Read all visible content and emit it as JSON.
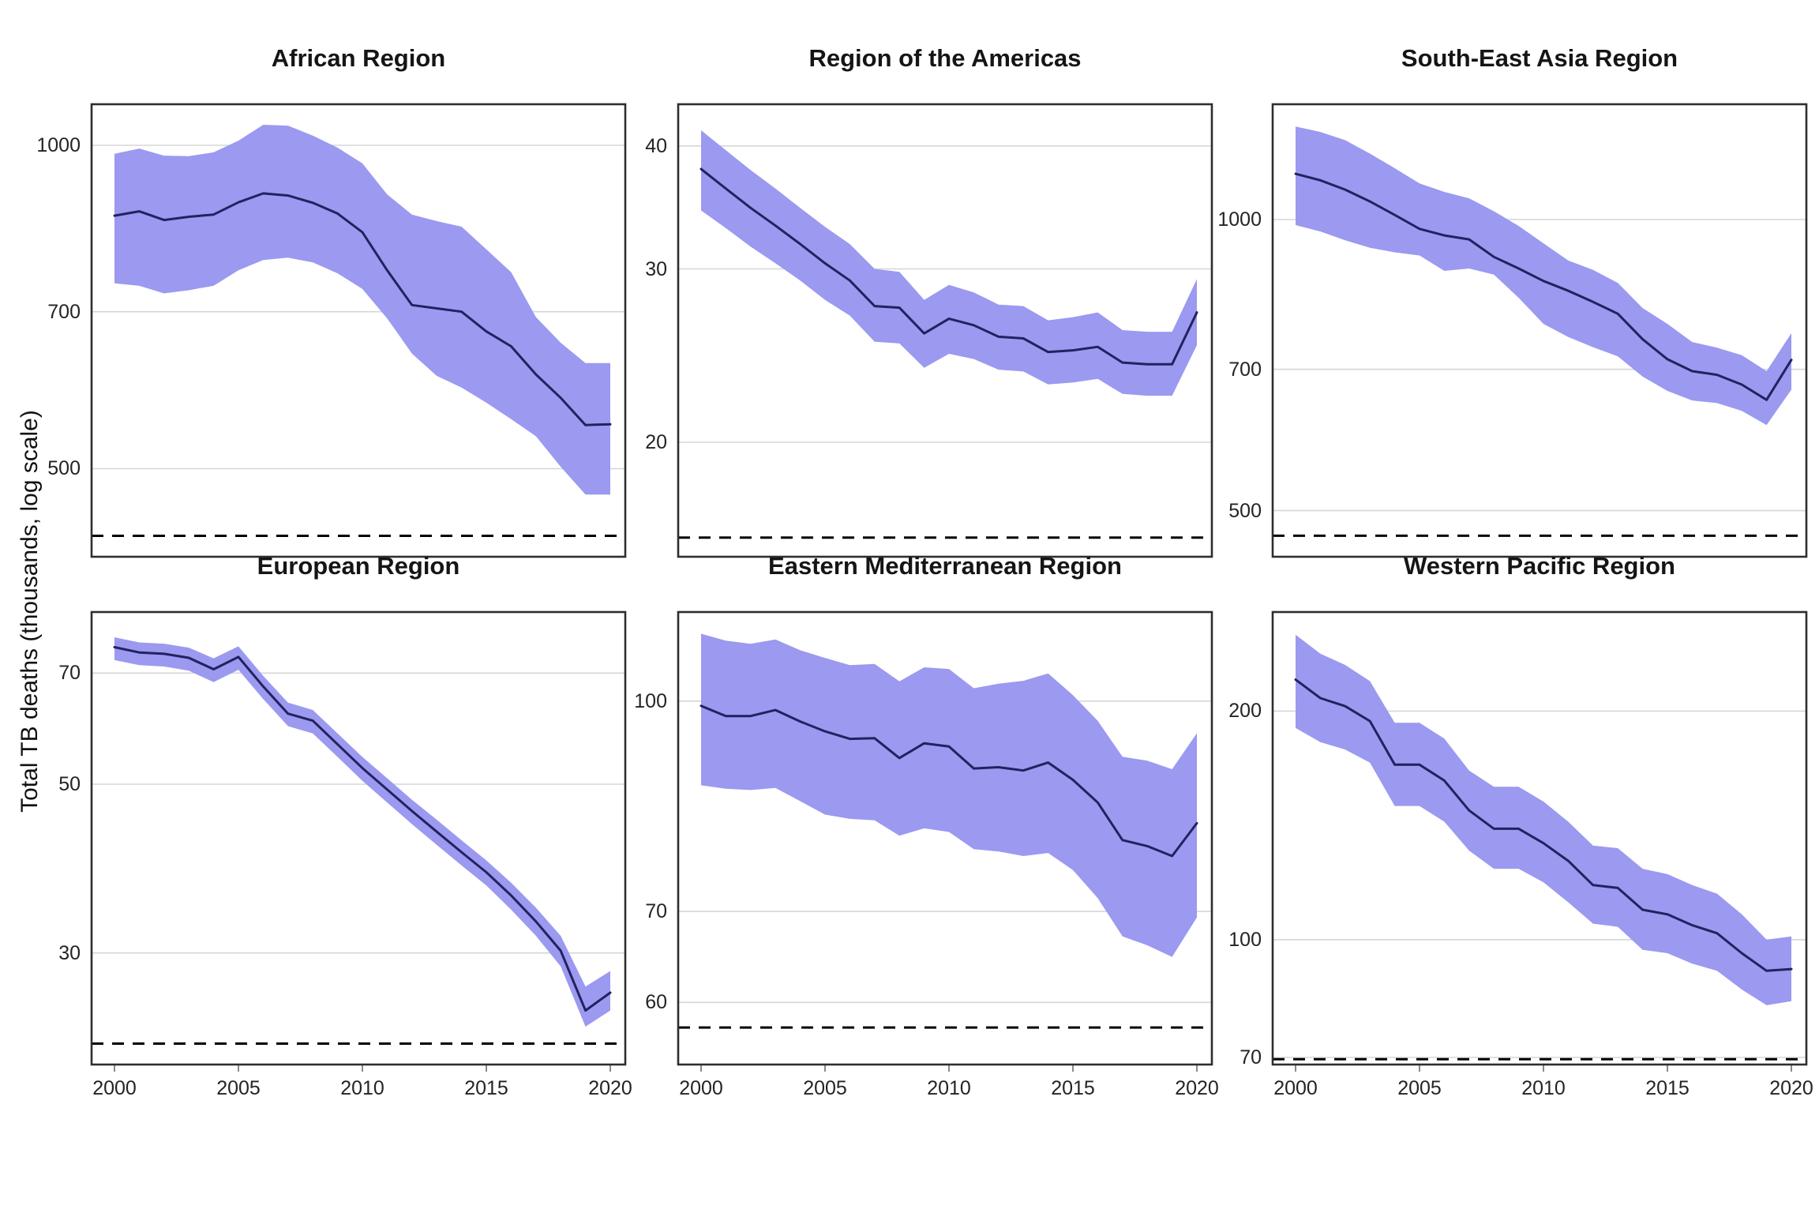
{
  "figure": {
    "ylabel": "Total TB deaths (thousands, log scale)"
  },
  "chart_data": {
    "type": "line",
    "title": "",
    "description": "Faceted ribbon line charts (2 rows x 3 columns), one per WHO region, log-scale y axis, with uncertainty band, mean line and dashed horizontal target line",
    "ylabel": "Total TB deaths (thousands, log scale)",
    "log_scale": true,
    "legend": "none",
    "grid": "horizontal gridlines only",
    "colors": {
      "ribbon": "#9b99f0",
      "line": "#23215f",
      "gridline": "#d6d6d6",
      "border": "#2e2e2e",
      "dashed": "#000000",
      "tick": "#8a8a8a"
    },
    "x": [
      2000,
      2001,
      2002,
      2003,
      2004,
      2005,
      2006,
      2007,
      2008,
      2009,
      2010,
      2011,
      2012,
      2013,
      2014,
      2015,
      2016,
      2017,
      2018,
      2019,
      2020
    ],
    "x_ticks": [
      {
        "label": "2000",
        "value": 2000
      },
      {
        "label": "2005",
        "value": 2005
      },
      {
        "label": "2010",
        "value": 2010
      },
      {
        "label": "2015",
        "value": 2015
      },
      {
        "label": "2020",
        "value": 2020
      }
    ],
    "facets": [
      {
        "title": "African Region",
        "ymax": 1092,
        "ymin": 414,
        "yticks": [
          {
            "label": "1000",
            "value": 1000
          },
          {
            "label": "700",
            "value": 700
          },
          {
            "label": "500",
            "value": 500
          }
        ],
        "dashed_line": 433,
        "mean": [
          860,
          868,
          852,
          858,
          862,
          885,
          902,
          898,
          884,
          864,
          830,
          765,
          710,
          705,
          700,
          671,
          650,
          612,
          582,
          549,
          550
        ],
        "hi": [
          982,
          993,
          978,
          977,
          985,
          1010,
          1045,
          1043,
          1021,
          995,
          962,
          900,
          862,
          850,
          840,
          800,
          762,
          692,
          655,
          627,
          627
        ],
        "lo": [
          744,
          740,
          728,
          733,
          740,
          765,
          782,
          786,
          778,
          760,
          735,
          690,
          640,
          610,
          595,
          576,
          556,
          536,
          502,
          473,
          473
        ]
      },
      {
        "title": "Region of the Americas",
        "ymax": 44.1,
        "ymin": 15.3,
        "yticks": [
          {
            "label": "40",
            "value": 40
          },
          {
            "label": "30",
            "value": 30
          },
          {
            "label": "20",
            "value": 20
          }
        ],
        "dashed_line": 16.0,
        "mean": [
          37.9,
          36.2,
          34.6,
          33.2,
          31.8,
          30.4,
          29.2,
          27.5,
          27.4,
          25.8,
          26.7,
          26.3,
          25.6,
          25.5,
          24.7,
          24.8,
          25.0,
          24.1,
          24.0,
          24.0,
          27.1
        ],
        "hi": [
          41.5,
          39.6,
          37.8,
          36.2,
          34.6,
          33.1,
          31.8,
          30.0,
          29.8,
          27.9,
          28.9,
          28.4,
          27.6,
          27.5,
          26.6,
          26.8,
          27.1,
          26.0,
          25.9,
          25.9,
          29.3
        ],
        "lo": [
          34.4,
          33.0,
          31.6,
          30.4,
          29.2,
          27.9,
          26.9,
          25.3,
          25.2,
          23.8,
          24.6,
          24.3,
          23.7,
          23.6,
          22.9,
          23.0,
          23.2,
          22.4,
          22.3,
          22.3,
          25.1
        ]
      },
      {
        "title": "South-East Asia Region",
        "ymax": 1316,
        "ymin": 448,
        "yticks": [
          {
            "label": "1000",
            "value": 1000
          },
          {
            "label": "700",
            "value": 700
          },
          {
            "label": "500",
            "value": 500
          }
        ],
        "dashed_line": 471,
        "mean": [
          1115,
          1098,
          1074,
          1044,
          1011,
          978,
          963,
          954,
          915,
          890,
          864,
          844,
          822,
          799,
          752,
          717,
          697,
          691,
          675,
          651,
          716
        ],
        "hi": [
          1248,
          1232,
          1208,
          1170,
          1130,
          1090,
          1068,
          1052,
          1020,
          985,
          945,
          907,
          887,
          860,
          810,
          780,
          747,
          737,
          724,
          697,
          763
        ],
        "lo": [
          987,
          972,
          952,
          935,
          925,
          918,
          885,
          890,
          877,
          830,
          780,
          756,
          738,
          722,
          688,
          665,
          650,
          646,
          634,
          613,
          667
        ]
      },
      {
        "title": "European Region",
        "ymax": 84.2,
        "ymin": 21.4,
        "yticks": [
          {
            "label": "70",
            "value": 70
          },
          {
            "label": "50",
            "value": 50
          },
          {
            "label": "30",
            "value": 30
          }
        ],
        "dashed_line": 22.8,
        "mean": [
          75.7,
          74.5,
          74.2,
          73.3,
          70.8,
          73.5,
          67.2,
          61.9,
          60.6,
          56.4,
          52.5,
          49.2,
          46.1,
          43.3,
          40.7,
          38.3,
          35.7,
          33.0,
          30.2,
          25.2,
          26.6
        ],
        "hi": [
          78.0,
          76.8,
          76.5,
          75.6,
          73.2,
          75.9,
          69.4,
          64.0,
          62.6,
          58.3,
          54.3,
          50.9,
          47.7,
          44.9,
          42.2,
          39.7,
          37.1,
          34.4,
          31.6,
          27.1,
          28.4
        ],
        "lo": [
          72.8,
          71.7,
          71.4,
          70.5,
          68.1,
          70.7,
          64.7,
          59.6,
          58.3,
          54.3,
          50.5,
          47.3,
          44.3,
          41.6,
          39.1,
          36.8,
          34.2,
          31.6,
          28.8,
          24.0,
          25.2
        ]
      },
      {
        "title": "Eastern Mediterranean Region",
        "ymax": 116.3,
        "ymin": 54.0,
        "yticks": [
          {
            "label": "100",
            "value": 100
          },
          {
            "label": "70",
            "value": 70
          },
          {
            "label": "60",
            "value": 60
          }
        ],
        "dashed_line": 57.5,
        "mean": [
          99.2,
          97.5,
          97.5,
          98.5,
          96.6,
          95.0,
          93.8,
          93.9,
          90.8,
          93.1,
          92.6,
          89.2,
          89.4,
          88.9,
          90.1,
          87.5,
          84.2,
          79.0,
          78.2,
          76.9,
          81.3
        ],
        "hi": [
          112.1,
          110.8,
          110.2,
          111.0,
          109.0,
          107.6,
          106.3,
          106.5,
          103.4,
          105.9,
          105.6,
          102.2,
          103.0,
          103.5,
          104.8,
          101.0,
          96.7,
          91.0,
          90.4,
          89.1,
          94.7
        ],
        "lo": [
          86.7,
          86.2,
          86.0,
          86.3,
          84.4,
          82.5,
          81.9,
          81.7,
          79.6,
          80.6,
          80.1,
          77.8,
          77.5,
          76.9,
          77.3,
          75.1,
          71.6,
          67.1,
          66.1,
          64.8,
          69.3
        ]
      },
      {
        "title": "Western Pacific Region",
        "ymax": 270,
        "ymin": 68.5,
        "yticks": [
          {
            "label": "200",
            "value": 200
          },
          {
            "label": "100",
            "value": 100
          },
          {
            "label": "70",
            "value": 70
          }
        ],
        "dashed_line": 69.6,
        "mean": [
          220,
          208,
          203,
          194,
          170,
          170,
          162,
          148,
          140,
          140,
          134,
          127,
          118,
          117,
          109.5,
          108,
          104.5,
          102,
          96,
          91,
          91.5
        ],
        "hi": [
          252,
          238,
          230,
          219,
          193,
          193,
          184,
          167,
          159,
          159,
          152,
          143,
          133,
          132,
          124,
          122,
          118,
          115,
          108,
          100,
          101
        ],
        "lo": [
          190,
          182,
          178,
          171,
          150,
          150,
          143,
          131,
          124,
          124,
          119,
          112,
          105,
          104,
          97,
          96,
          93,
          91,
          86,
          82,
          83
        ]
      }
    ]
  }
}
